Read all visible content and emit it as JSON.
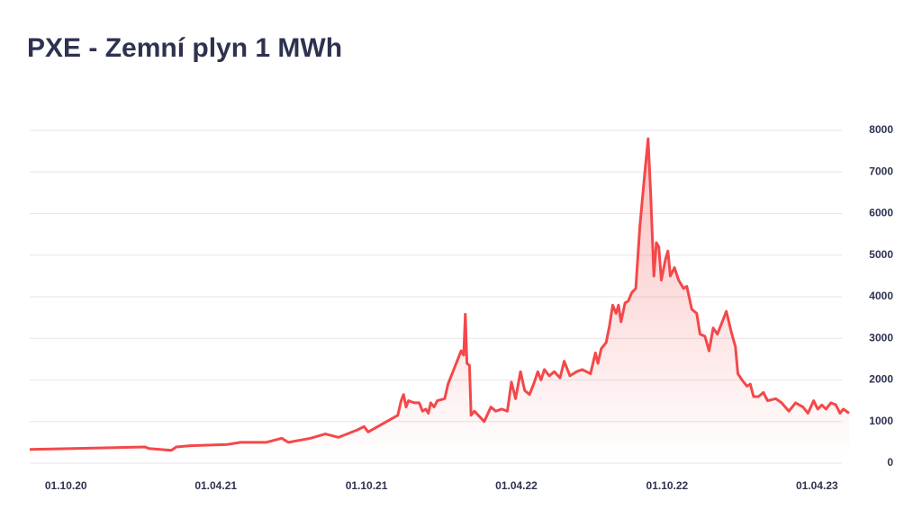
{
  "chart_data": {
    "type": "area",
    "title": "PXE - Zemní plyn 1 MWh",
    "color": "#f4484a",
    "x": [
      "2020-08-18",
      "2021-01-05",
      "2021-01-10",
      "2021-02-06",
      "2021-02-12",
      "2021-03-01",
      "2021-04-15",
      "2021-05-01",
      "2021-06-01",
      "2021-06-20",
      "2021-06-28",
      "2021-07-25",
      "2021-08-12",
      "2021-08-28",
      "2021-09-20",
      "2021-09-28",
      "2021-10-03",
      "2021-11-08",
      "2021-11-12",
      "2021-11-15",
      "2021-11-18",
      "2021-11-21",
      "2021-11-28",
      "2021-12-04",
      "2021-12-08",
      "2021-12-12",
      "2021-12-15",
      "2021-12-18",
      "2021-12-22",
      "2021-12-26",
      "2022-01-04",
      "2022-01-08",
      "2022-01-16",
      "2022-01-24",
      "2022-01-27",
      "2022-01-29",
      "2022-01-31",
      "2022-02-03",
      "2022-02-05",
      "2022-02-09",
      "2022-02-21",
      "2022-03-01",
      "2022-03-07",
      "2022-03-14",
      "2022-03-21",
      "2022-03-26",
      "2022-03-31",
      "2022-04-06",
      "2022-04-11",
      "2022-04-17",
      "2022-04-22",
      "2022-04-27",
      "2022-05-01",
      "2022-05-05",
      "2022-05-11",
      "2022-05-17",
      "2022-05-24",
      "2022-05-29",
      "2022-06-05",
      "2022-06-13",
      "2022-06-20",
      "2022-06-30",
      "2022-07-06",
      "2022-07-09",
      "2022-07-13",
      "2022-07-19",
      "2022-07-23",
      "2022-07-27",
      "2022-07-31",
      "2022-08-03",
      "2022-08-06",
      "2022-08-11",
      "2022-08-15",
      "2022-08-19",
      "2022-08-24",
      "2022-08-29",
      "2022-09-04",
      "2022-09-08",
      "2022-09-11",
      "2022-09-15",
      "2022-09-18",
      "2022-09-21",
      "2022-09-24",
      "2022-09-29",
      "2022-10-02",
      "2022-10-05",
      "2022-10-10",
      "2022-10-15",
      "2022-10-21",
      "2022-10-25",
      "2022-10-31",
      "2022-11-06",
      "2022-11-10",
      "2022-11-16",
      "2022-11-21",
      "2022-11-26",
      "2022-12-01",
      "2022-12-07",
      "2022-12-12",
      "2022-12-18",
      "2022-12-23",
      "2022-12-26",
      "2022-12-31",
      "2023-01-06",
      "2023-01-10",
      "2023-01-14",
      "2023-01-20",
      "2023-01-26",
      "2023-01-31",
      "2023-02-10",
      "2023-02-17",
      "2023-02-26",
      "2023-03-06",
      "2023-03-15",
      "2023-03-21",
      "2023-03-28",
      "2023-04-02",
      "2023-04-07",
      "2023-04-12",
      "2023-04-18",
      "2023-04-24",
      "2023-04-29",
      "2023-05-03",
      "2023-05-10"
    ],
    "values": [
      330,
      390,
      350,
      310,
      390,
      420,
      450,
      500,
      500,
      600,
      500,
      600,
      700,
      620,
      800,
      880,
      750,
      1150,
      1500,
      1650,
      1350,
      1500,
      1450,
      1450,
      1250,
      1300,
      1200,
      1450,
      1350,
      1500,
      1550,
      1900,
      2300,
      2700,
      2600,
      3580,
      2400,
      2350,
      1150,
      1250,
      1000,
      1350,
      1250,
      1300,
      1250,
      1950,
      1550,
      2200,
      1750,
      1650,
      1900,
      2200,
      2000,
      2250,
      2100,
      2200,
      2050,
      2450,
      2100,
      2200,
      2250,
      2150,
      2650,
      2400,
      2750,
      2900,
      3300,
      3800,
      3600,
      3800,
      3400,
      3850,
      3900,
      4100,
      4200,
      5700,
      7000,
      7800,
      6500,
      4500,
      5300,
      5200,
      4400,
      4900,
      5100,
      4500,
      4700,
      4400,
      4200,
      4250,
      3700,
      3600,
      3100,
      3050,
      2700,
      3250,
      3100,
      3400,
      3650,
      3150,
      2800,
      2150,
      2000,
      1850,
      1900,
      1600,
      1600,
      1700,
      1500,
      1550,
      1450,
      1250,
      1450,
      1350,
      1200,
      1500,
      1300,
      1400,
      1300,
      1450,
      1400,
      1200,
      1300,
      1200
    ],
    "xlim": [
      "2020-08-18",
      "2023-05-10"
    ],
    "xticks": [
      {
        "value": "2020-10-01",
        "label": "01.10.20"
      },
      {
        "value": "2021-04-01",
        "label": "01.04.21"
      },
      {
        "value": "2021-10-01",
        "label": "01.10.21"
      },
      {
        "value": "2022-04-01",
        "label": "01.04.22"
      },
      {
        "value": "2022-10-01",
        "label": "01.10.22"
      },
      {
        "value": "2023-04-01",
        "label": "01.04.23"
      }
    ],
    "ylim": [
      0,
      8000
    ],
    "yticks": [
      0,
      1000,
      2000,
      3000,
      4000,
      5000,
      6000,
      7000,
      8000
    ],
    "grid": true
  }
}
